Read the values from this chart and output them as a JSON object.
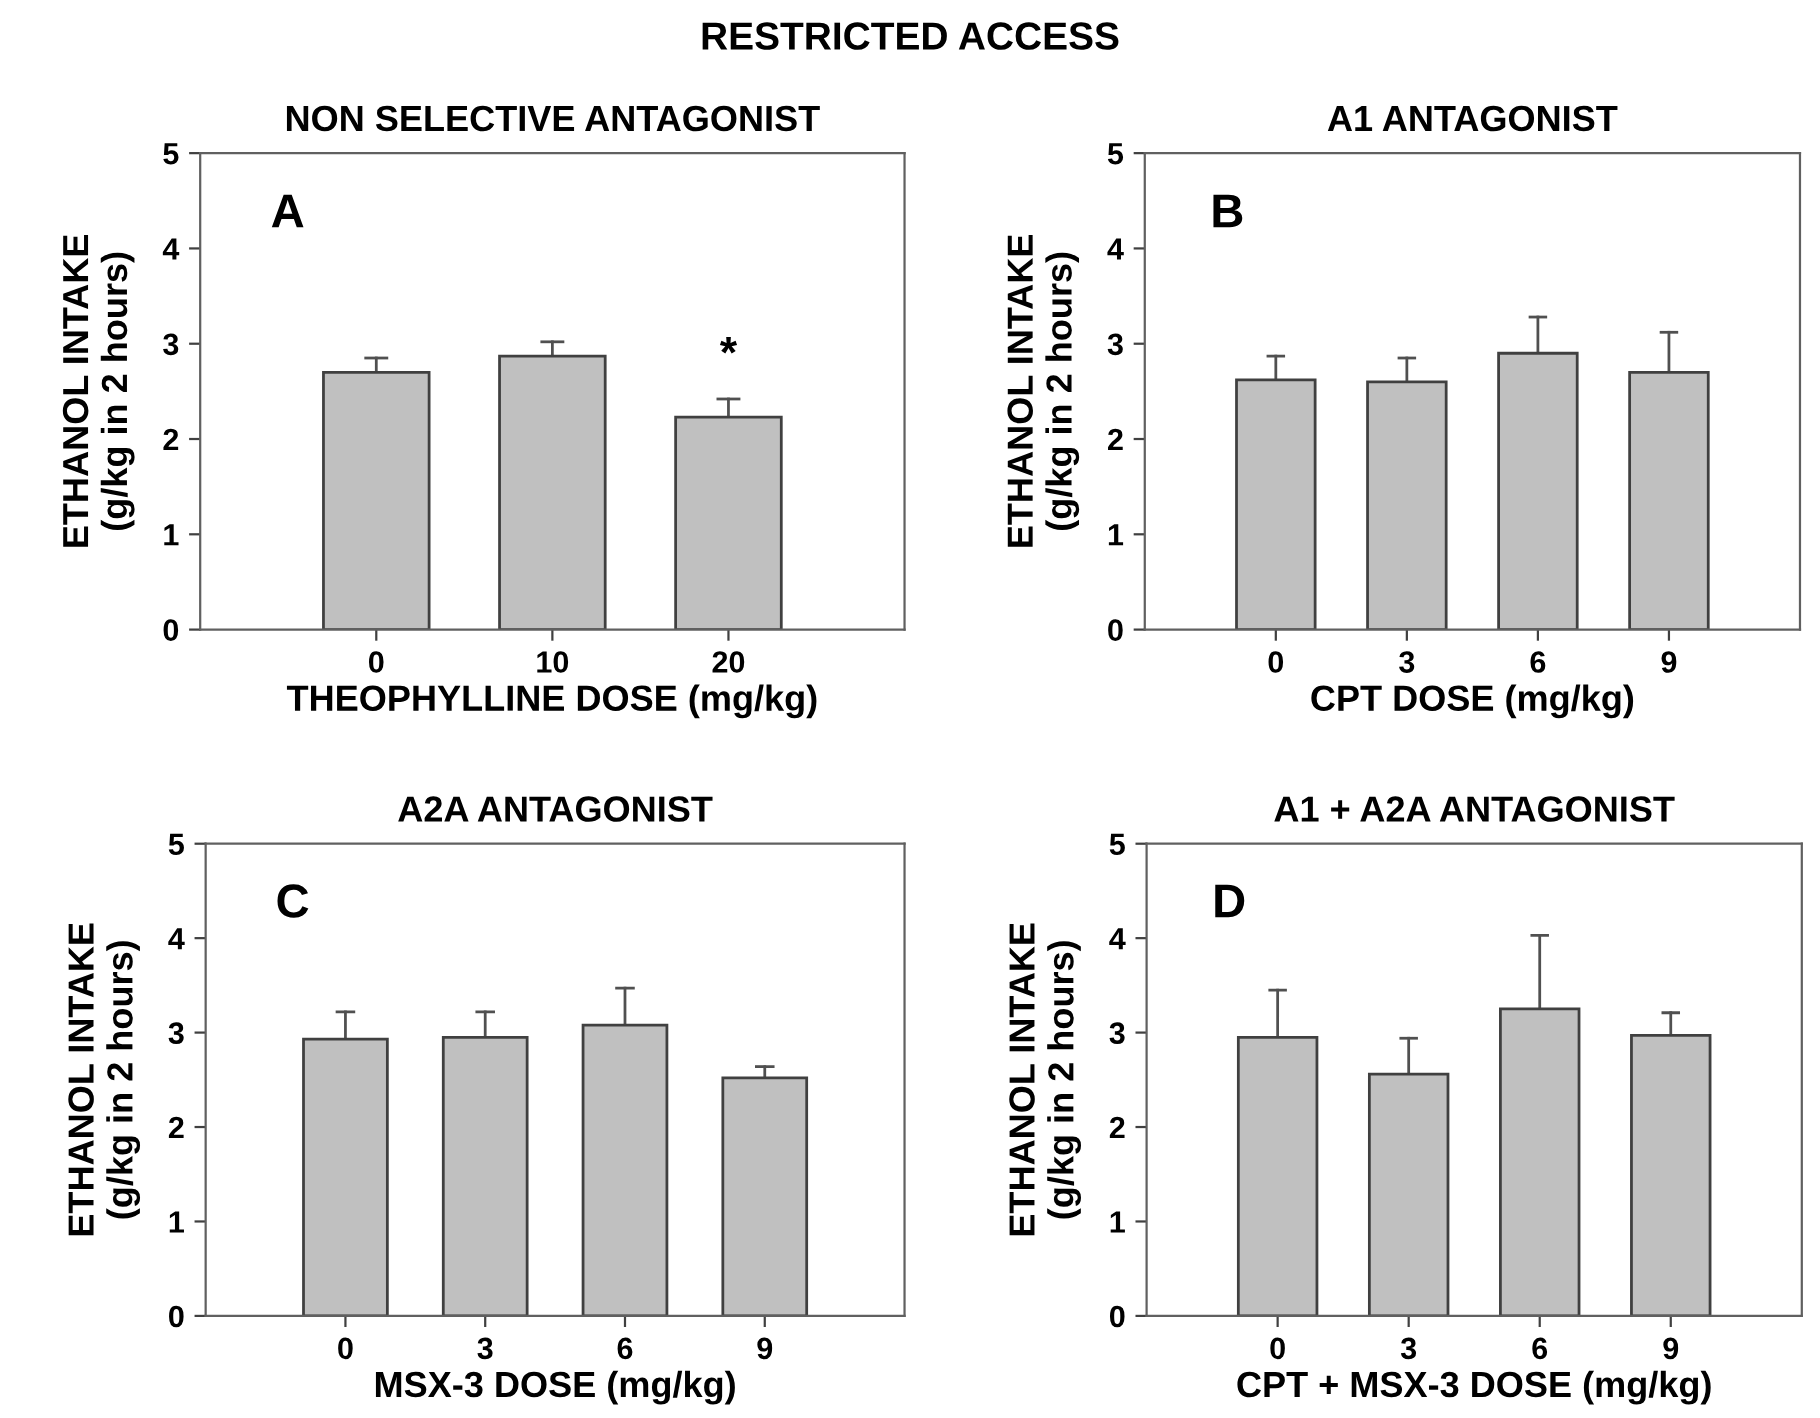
{
  "chart_data": [
    {
      "type": "bar",
      "title": "RESTRICTED ACCESS",
      "subtitle": "NON SELECTIVE ANTAGONIST",
      "xlabel": "THEOPHYLLINE DOSE (mg/kg)",
      "ylabel": "ETHANOL INTAKE\n(g/kg in 2 hours)",
      "categories": [
        "0",
        "10",
        "20"
      ],
      "values": [
        2.7,
        2.87,
        2.23
      ],
      "errors": [
        [
          2.7,
          2.85
        ],
        [
          2.87,
          3.02
        ],
        [
          2.23,
          2.42
        ]
      ],
      "color": "#c0c0c0",
      "ylim": [
        0,
        5
      ],
      "yticks": [
        0,
        1,
        2,
        3,
        4,
        5
      ],
      "annotations": [
        "A",
        {
          "text": "*",
          "x": "20",
          "y": 2.23
        }
      ]
    },
    {
      "type": "bar",
      "subtitle": "A1 ANTAGONIST",
      "xlabel": "CPT DOSE (mg/kg)",
      "ylabel": "ETHANOL INTAKE\n(g/kg in 2 hours)",
      "categories": [
        "0",
        "3",
        "6",
        "9"
      ],
      "values": [
        2.62,
        2.6,
        2.9,
        2.7
      ],
      "errors": [
        [
          2.62,
          2.87
        ],
        [
          2.6,
          2.85
        ],
        [
          2.9,
          3.28
        ],
        [
          2.7,
          3.12
        ]
      ],
      "color": "#c0c0c0",
      "ylim": [
        0,
        5
      ],
      "yticks": [
        0,
        1,
        2,
        3,
        4,
        5
      ],
      "annotations": [
        "B"
      ]
    },
    {
      "type": "bar",
      "subtitle": "A2A ANTAGONIST",
      "xlabel": "MSX-3 DOSE (mg/kg)",
      "ylabel": "ETHANOL INTAKE\n(g/kg in 2 hours)",
      "categories": [
        "0",
        "3",
        "6",
        "9"
      ],
      "values": [
        2.93,
        2.95,
        3.08,
        2.52
      ],
      "errors": [
        [
          2.93,
          3.22
        ],
        [
          2.95,
          3.22
        ],
        [
          3.08,
          3.47
        ],
        [
          2.52,
          2.64
        ]
      ],
      "color": "#c0c0c0",
      "ylim": [
        0,
        5
      ],
      "yticks": [
        0,
        1,
        2,
        3,
        4,
        5
      ],
      "annotations": [
        "C"
      ]
    },
    {
      "type": "bar",
      "subtitle": "A1 + A2A ANTAGONIST",
      "xlabel": "CPT + MSX-3 DOSE (mg/kg)",
      "ylabel": "ETHANOL INTAKE\n(g/kg in 2 hours)",
      "categories": [
        "0",
        "3",
        "6",
        "9"
      ],
      "values": [
        2.95,
        2.56,
        3.25,
        2.97
      ],
      "errors": [
        [
          2.95,
          3.45
        ],
        [
          2.56,
          2.94
        ],
        [
          3.25,
          4.03
        ],
        [
          2.97,
          3.21
        ]
      ],
      "color": "#c0c0c0",
      "ylim": [
        0,
        5
      ],
      "yticks": [
        0,
        1,
        2,
        3,
        4,
        5
      ],
      "annotations": [
        "D"
      ]
    }
  ]
}
